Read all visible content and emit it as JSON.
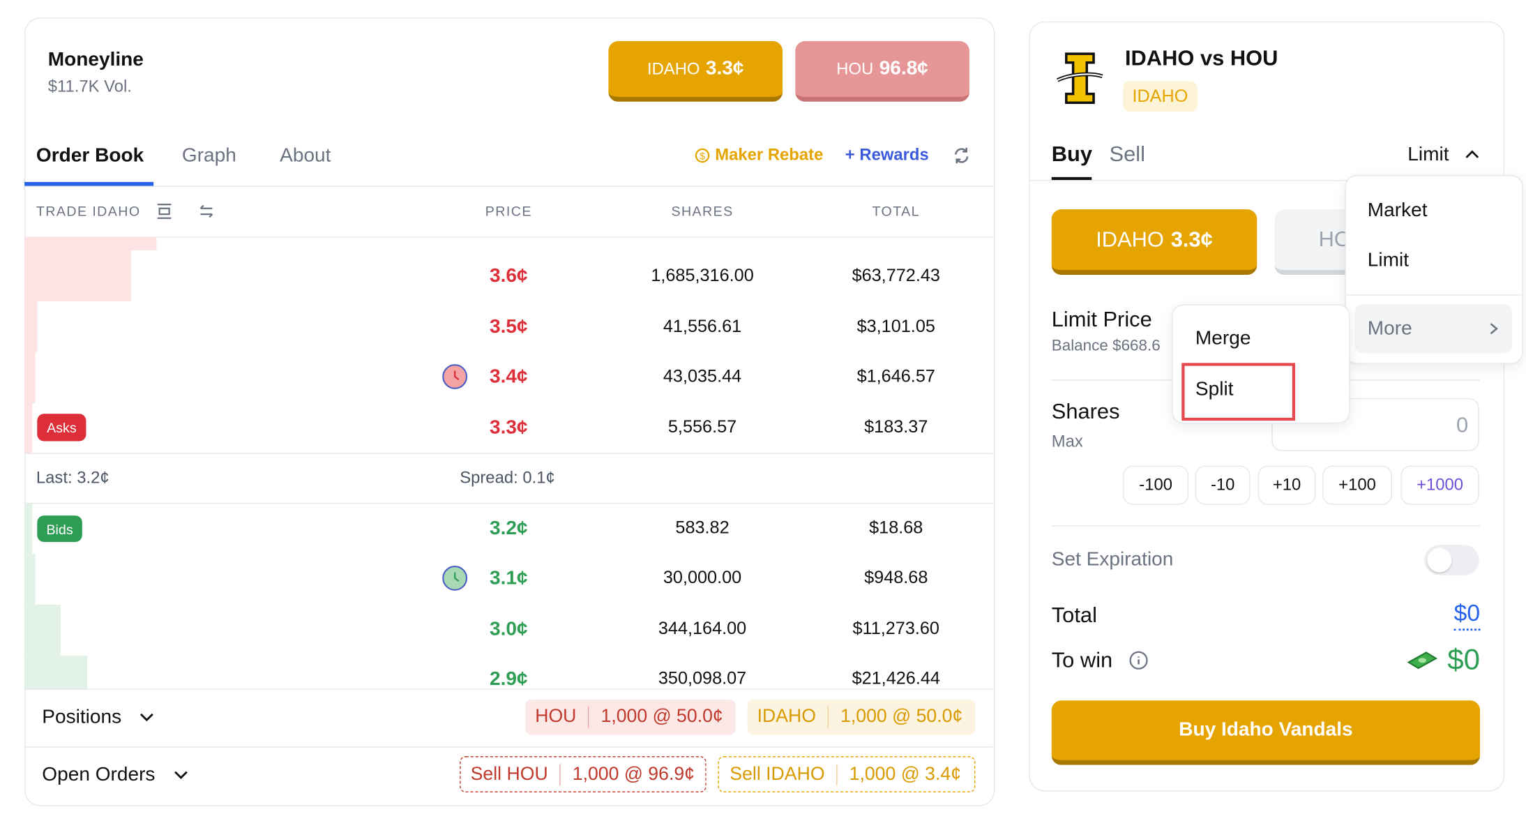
{
  "market": {
    "title": "Moneyline",
    "volume": "$11.7K Vol.",
    "buttons": [
      {
        "label": "IDAHO",
        "price": "3.3¢"
      },
      {
        "label": "HOU",
        "price": "96.8¢"
      }
    ]
  },
  "tabs": [
    "Order Book",
    "Graph",
    "About"
  ],
  "links": {
    "maker_rebate": "Maker Rebate",
    "rewards": "+ Rewards"
  },
  "order_book": {
    "columns": [
      "TRADE IDAHO",
      "PRICE",
      "SHARES",
      "TOTAL"
    ],
    "asks_label": "Asks",
    "bids_label": "Bids",
    "asks": [
      [
        "3.6¢",
        "1,685,316.00",
        "$63,772.43"
      ],
      [
        "3.5¢",
        "41,556.61",
        "$3,101.05"
      ],
      [
        "3.4¢",
        "43,035.44",
        "$1,646.57"
      ],
      [
        "3.3¢",
        "5,556.57",
        "$183.37"
      ]
    ],
    "last": "Last: 3.2¢",
    "spread": "Spread: 0.1¢",
    "bids": [
      [
        "3.2¢",
        "583.82",
        "$18.68"
      ],
      [
        "3.1¢",
        "30,000.00",
        "$948.68"
      ],
      [
        "3.0¢",
        "344,164.00",
        "$11,273.60"
      ],
      [
        "2.9¢",
        "350,098.07",
        "$21,426.44"
      ]
    ]
  },
  "positions": {
    "label": "Positions",
    "items": [
      {
        "side": "HOU",
        "detail": "1,000 @ 50.0¢"
      },
      {
        "side": "IDAHO",
        "detail": "1,000 @ 50.0¢"
      }
    ]
  },
  "open_orders": {
    "label": "Open Orders",
    "items": [
      {
        "side": "Sell HOU",
        "detail": "1,000 @ 96.9¢"
      },
      {
        "side": "Sell IDAHO",
        "detail": "1,000 @ 3.4¢"
      }
    ]
  },
  "ticket": {
    "title": "IDAHO vs HOU",
    "tag": "IDAHO",
    "tabs": [
      "Buy",
      "Sell"
    ],
    "order_type": "Limit",
    "outcomes": [
      {
        "label": "IDAHO",
        "price": "3.3¢"
      },
      {
        "label": "HO"
      }
    ],
    "limit_price": "Limit Price",
    "balance": "Balance $668.6",
    "shares": "Shares",
    "max": "Max",
    "shares_placeholder": "0",
    "increments": [
      "-100",
      "-10",
      "+10",
      "+100",
      "+1000"
    ],
    "set_expiration": "Set Expiration",
    "total_label": "Total",
    "total_value": "$0",
    "to_win_label": "To win",
    "to_win_value": "$0",
    "submit": "Buy Idaho Vandals"
  },
  "order_type_menu": {
    "items": [
      "Market",
      "Limit",
      "More"
    ]
  },
  "more_menu": {
    "items": [
      "Merge",
      "Split"
    ]
  }
}
